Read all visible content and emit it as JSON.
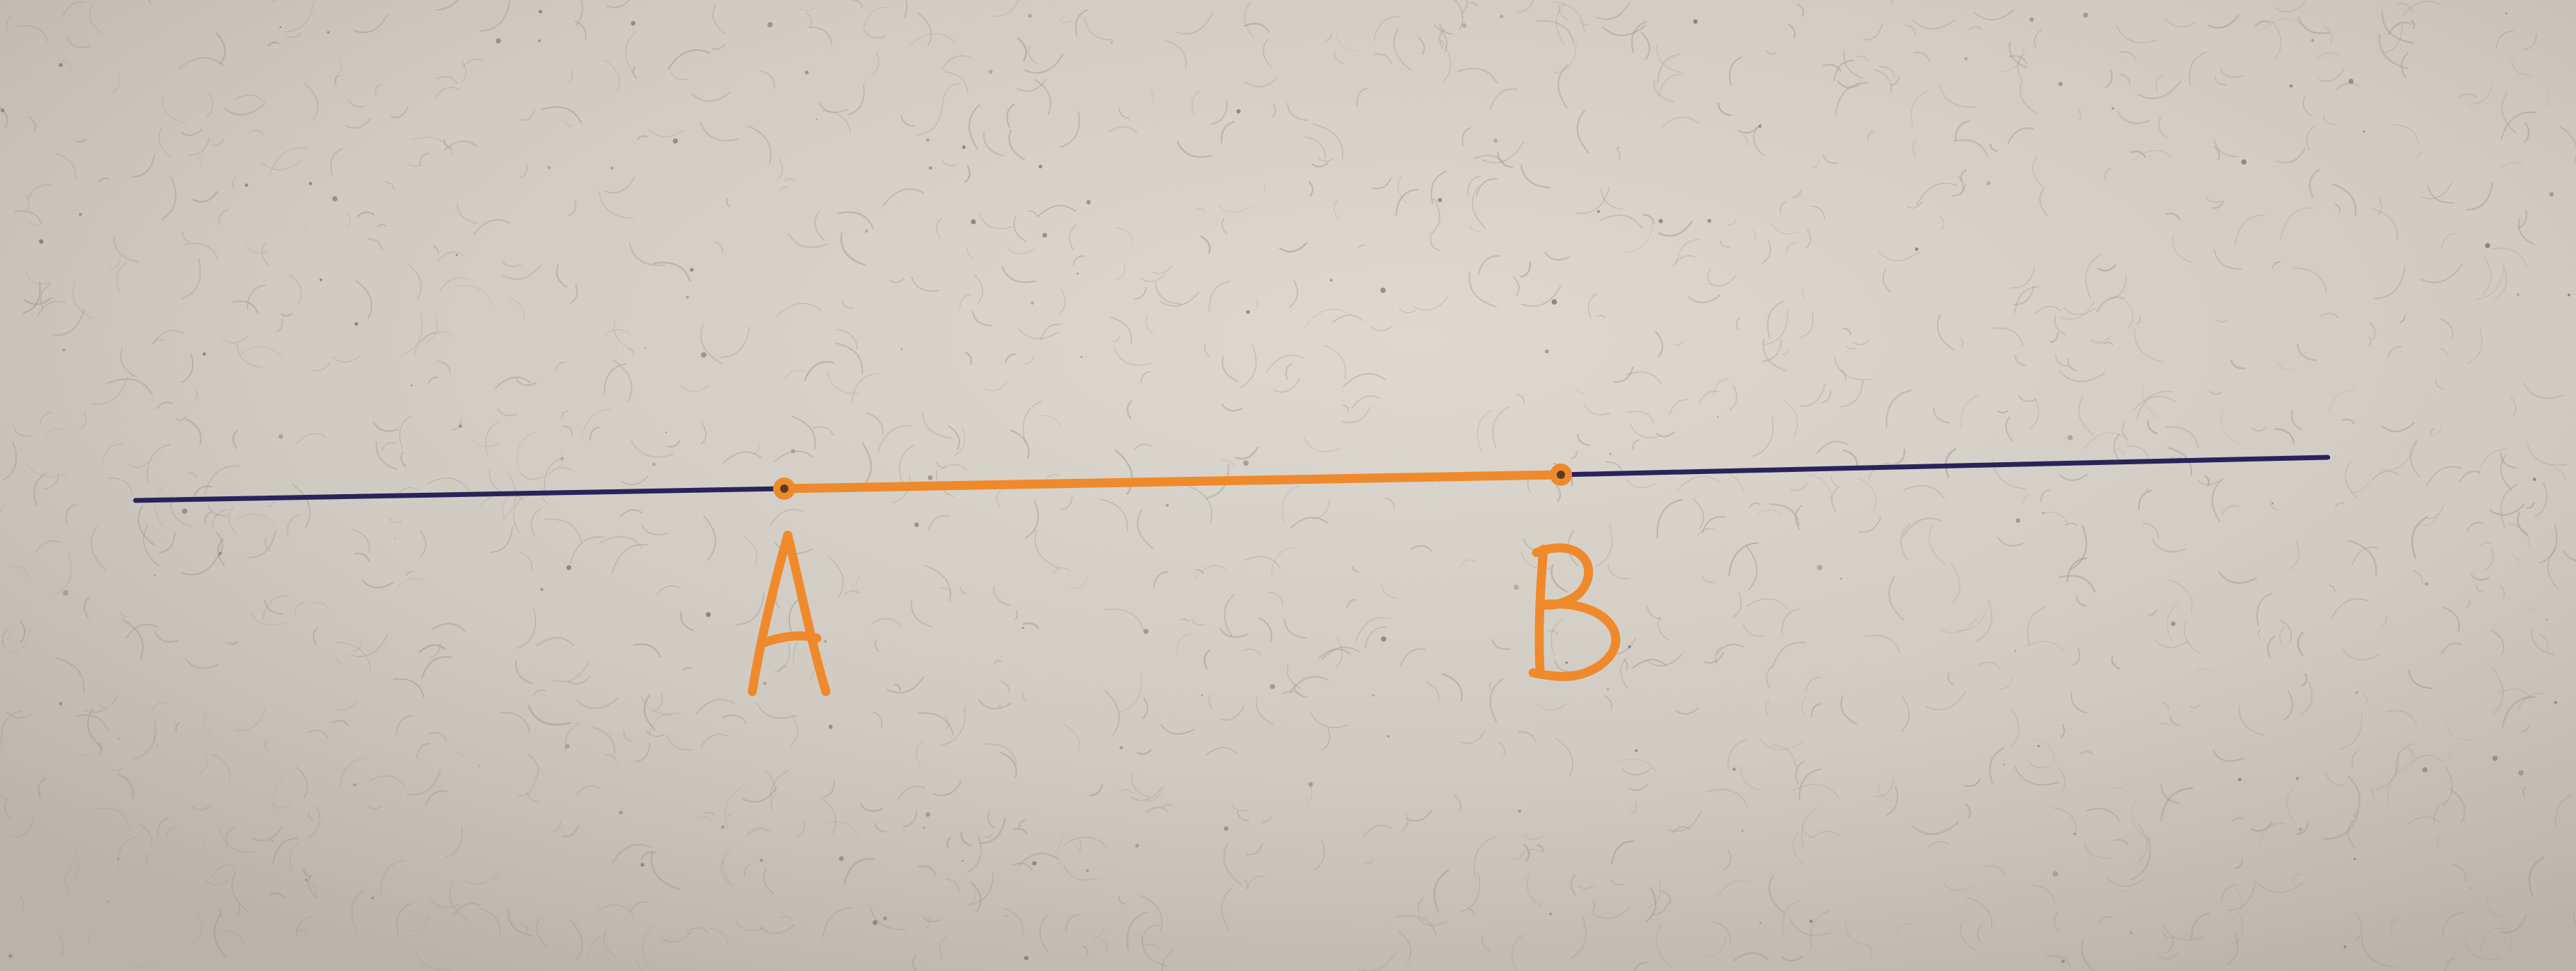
{
  "scene": {
    "description_kind": "photo of a hand-drawn line on paper",
    "colors": {
      "paper": "#cfcbc3",
      "paper_light": "#ddd9d1",
      "paper_dark": "#b9b4ab",
      "fiber": "#a59d90",
      "line": "#28245a",
      "segment": "#ef8a2c"
    },
    "points": {
      "a": {
        "label": "A"
      },
      "b": {
        "label": "B"
      }
    }
  }
}
